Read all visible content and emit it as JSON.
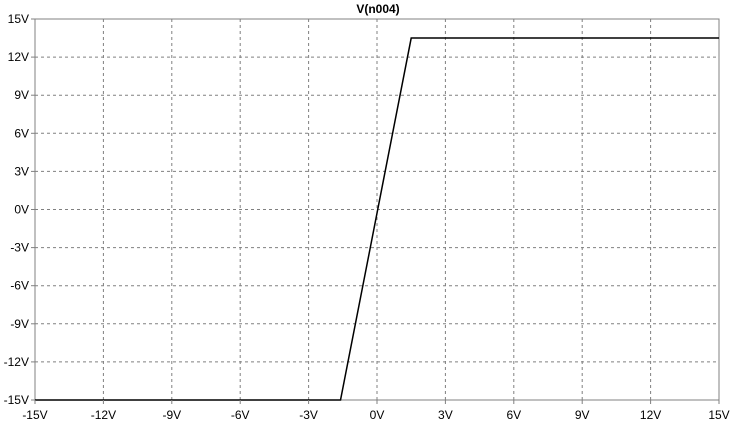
{
  "chart_data": {
    "type": "line",
    "title": "V(n004)",
    "xlabel": "",
    "ylabel": "",
    "xlim": [
      -15,
      15
    ],
    "ylim": [
      -15,
      15
    ],
    "x_ticks": [
      -15,
      -12,
      -9,
      -6,
      -3,
      0,
      3,
      6,
      9,
      12,
      15
    ],
    "y_ticks": [
      -15,
      -12,
      -9,
      -6,
      -3,
      0,
      3,
      6,
      9,
      12,
      15
    ],
    "x_tick_labels": [
      "-15V",
      "-12V",
      "-9V",
      "-6V",
      "-3V",
      "0V",
      "3V",
      "6V",
      "9V",
      "12V",
      "15V"
    ],
    "y_tick_labels": [
      "-15V",
      "-12V",
      "-9V",
      "-6V",
      "-3V",
      "0V",
      "3V",
      "6V",
      "9V",
      "12V",
      "15V"
    ],
    "grid": true,
    "series": [
      {
        "color": "#000000",
        "x": [
          -15,
          -1.6,
          1.5,
          15
        ],
        "y": [
          -15,
          -15,
          13.5,
          13.5
        ]
      }
    ]
  }
}
